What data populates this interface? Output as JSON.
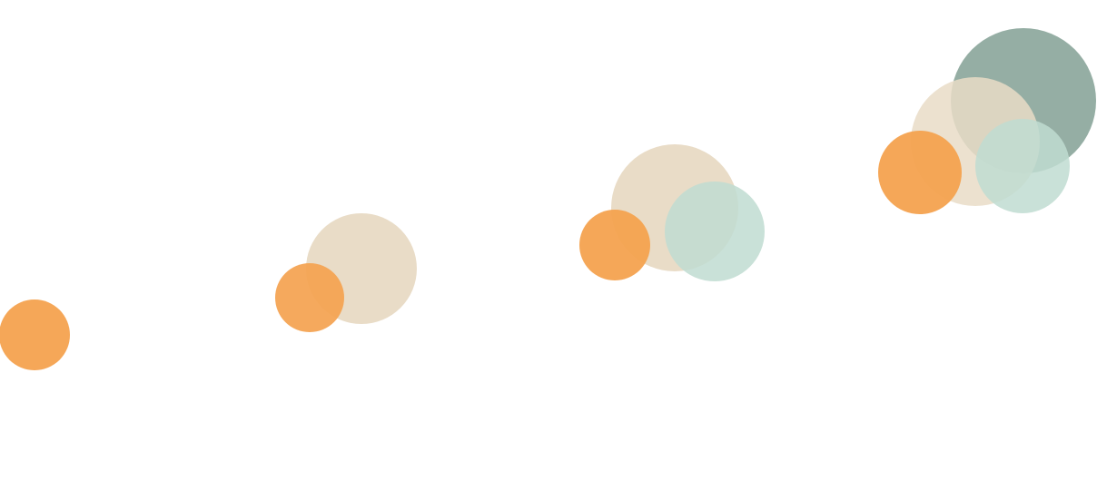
{
  "palette": {
    "orange": "#f4a24f",
    "beige": "#e9dcc7",
    "mint": "#bfdcd1",
    "sage": "#8faa9f"
  },
  "clusters": [
    {
      "id": "cluster-1",
      "circles": [
        "orange"
      ]
    },
    {
      "id": "cluster-2",
      "circles": [
        "beige",
        "orange"
      ]
    },
    {
      "id": "cluster-3",
      "circles": [
        "beige",
        "mint",
        "orange"
      ]
    },
    {
      "id": "cluster-4",
      "circles": [
        "sage",
        "beige",
        "mint",
        "orange"
      ]
    }
  ]
}
